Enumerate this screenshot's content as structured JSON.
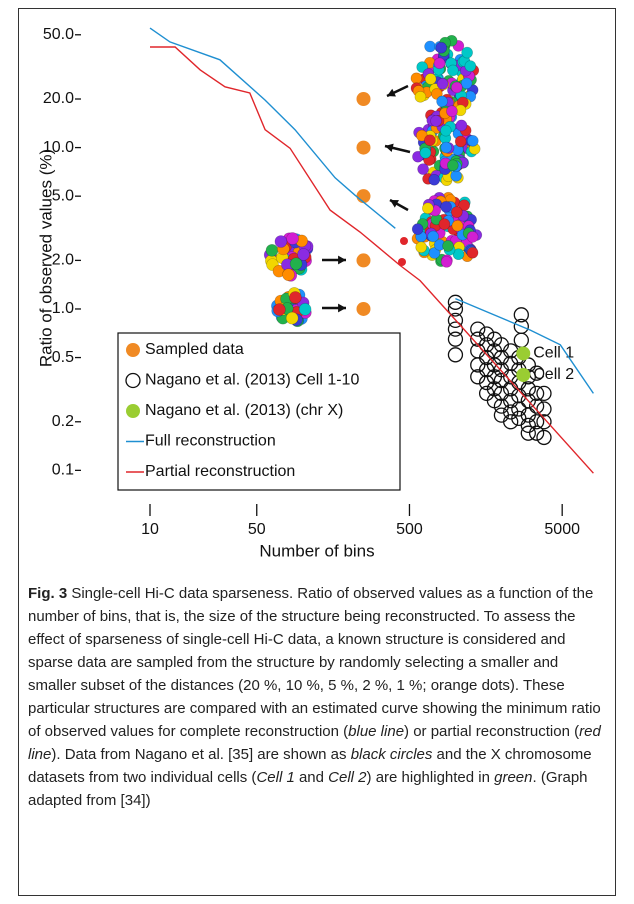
{
  "chart_data": {
    "type": "scatter",
    "x_label": "Number of bins",
    "y_label": "Ratio of observed values (%)",
    "xscale": "log",
    "yscale": "log",
    "xlim": [
      8.6,
      8200
    ],
    "ylim": [
      0.08,
      60
    ],
    "xticks": [
      10,
      50,
      500,
      5000
    ],
    "yticks": [
      {
        "value": 50,
        "label": "50.0"
      },
      {
        "value": 20,
        "label": "20.0"
      },
      {
        "value": 10,
        "label": "10.0"
      },
      {
        "value": 5,
        "label": "5.0"
      },
      {
        "value": 2,
        "label": "2.0"
      },
      {
        "value": 1,
        "label": "1.0"
      },
      0.5,
      0.2,
      0.1
    ],
    "legend": "bottom-left",
    "series": [
      {
        "name": "Sampled data",
        "color": "#f08a24",
        "mode": "markers",
        "marker": "filled",
        "x": [
          250,
          250,
          250,
          250,
          250
        ],
        "values": [
          20,
          10,
          5,
          2,
          1
        ]
      },
      {
        "name": "Nagano et al. (2013) Cell 1-10",
        "color": "#111111",
        "mode": "markers",
        "marker": "hollow",
        "x": [
          1000,
          1000,
          1000,
          1000,
          1000,
          1000,
          1400,
          1400,
          1400,
          1400,
          1400,
          1600,
          1600,
          1600,
          1600,
          1600,
          1600,
          1800,
          1800,
          1800,
          1800,
          1800,
          1800,
          2000,
          2000,
          2000,
          2000,
          2000,
          2000,
          2000,
          2300,
          2300,
          2300,
          2300,
          2300,
          2300,
          2300,
          2600,
          2600,
          2600,
          2600,
          2600,
          2600,
          2700,
          2700,
          2700,
          3000,
          3000,
          3000,
          3000,
          3000,
          3000,
          3000,
          3400,
          3400,
          3400,
          3400,
          3400,
          3800,
          3800,
          3800,
          3800
        ],
        "values": [
          1.1,
          1.0,
          0.85,
          0.75,
          0.65,
          0.52,
          0.75,
          0.65,
          0.55,
          0.45,
          0.38,
          0.7,
          0.6,
          0.5,
          0.42,
          0.35,
          0.3,
          0.65,
          0.55,
          0.45,
          0.38,
          0.32,
          0.27,
          0.6,
          0.5,
          0.42,
          0.36,
          0.3,
          0.25,
          0.22,
          0.55,
          0.46,
          0.38,
          0.32,
          0.27,
          0.23,
          0.2,
          0.5,
          0.42,
          0.35,
          0.29,
          0.24,
          0.21,
          0.92,
          0.78,
          0.64,
          0.45,
          0.38,
          0.32,
          0.27,
          0.22,
          0.19,
          0.17,
          0.4,
          0.3,
          0.25,
          0.2,
          0.17,
          0.3,
          0.24,
          0.2,
          0.16
        ]
      },
      {
        "name": "Nagano et al. (2013) (chr X)",
        "color": "#9acd32",
        "mode": "markers",
        "marker": "filled",
        "x": [
          2780,
          2780
        ],
        "values": [
          0.53,
          0.39
        ],
        "point_labels": [
          "Cell 1",
          "Cell 2"
        ]
      },
      {
        "name": "Full reconstruction",
        "color": "#1f8fd1",
        "mode": "lines",
        "x": [
          10,
          13.5,
          28.7,
          56.7,
          89,
          163,
          220,
          404,
          null,
          1000,
          3090,
          4860,
          8000
        ],
        "values": [
          55,
          45.2,
          35,
          19.7,
          12.9,
          6.5,
          5.07,
          3.16,
          null,
          1.16,
          0.74,
          0.6,
          0.3
        ]
      },
      {
        "name": "Partial reconstruction",
        "color": "#e0262b",
        "mode": "lines",
        "x": [
          10,
          14.6,
          21.3,
          31,
          45,
          56.7,
          82.7,
          151,
          237,
          435,
          587,
          8000
        ],
        "values": [
          42,
          42,
          30.3,
          23.8,
          21.8,
          12.9,
          9.9,
          4.1,
          3.0,
          1.86,
          1.5,
          0.096
        ]
      }
    ]
  },
  "caption": {
    "label": "Fig. 3",
    "segments": [
      {
        "text": "Single-cell Hi-C data sparseness. Ratio of observed values as a function of the number of bins, that is, the size of the structure being reconstructed. To assess the effect of sparseness of single-cell Hi-C data, a known structure is considered and sparse data are sampled from the structure by randomly selecting a smaller and smaller subset of the distances (20 %, 10 %, 5 %, 2 %, 1 %; orange dots). These particular structures are compared with an estimated curve showing the minimum ratio of observed values for complete reconstruction (",
        "italic": false
      },
      {
        "text": "blue line",
        "italic": true
      },
      {
        "text": ") or partial reconstruction (",
        "italic": false
      },
      {
        "text": "red line",
        "italic": true
      },
      {
        "text": "). Data from Nagano et al. [35] are shown as ",
        "italic": false
      },
      {
        "text": "black circles",
        "italic": true
      },
      {
        "text": " and the X chromosome datasets from two individual cells (",
        "italic": false
      },
      {
        "text": "Cell 1",
        "italic": true
      },
      {
        "text": " and ",
        "italic": false
      },
      {
        "text": "Cell 2",
        "italic": true
      },
      {
        "text": ") are highlighted in ",
        "italic": false
      },
      {
        "text": "green",
        "italic": true
      },
      {
        "text": ". (Graph adapted from [34])",
        "italic": false
      }
    ]
  }
}
